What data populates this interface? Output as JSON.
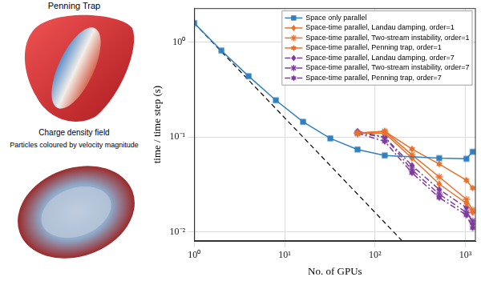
{
  "chart_data": {
    "type": "line",
    "log": true,
    "grid": true,
    "legend": "upper right",
    "x_label": "No. of GPUs",
    "y_label": "time / time step (s)",
    "annotations": [
      "Penning Trap",
      "Charge density field",
      "Particles coloured by velocity magnitude"
    ],
    "xlim": [
      1,
      1300
    ],
    "xticks": [
      {
        "value": 1,
        "label": "10⁰"
      },
      {
        "value": 10,
        "label": "10¹"
      },
      {
        "value": 100,
        "label": "10²"
      },
      {
        "value": 1000,
        "label": "10³"
      }
    ],
    "ylim": [
      0.008,
      2.3
    ],
    "yticks": [
      {
        "value": 0.01,
        "label": "10⁻²"
      },
      {
        "value": 0.1,
        "label": "10⁻¹"
      },
      {
        "value": 1,
        "label": "10⁰"
      }
    ],
    "series": [
      {
        "name": "Space only parallel",
        "color": "#2f7fc1",
        "marker": "square",
        "line_style": "solid",
        "x": [
          1,
          2,
          4,
          8,
          16,
          32,
          64,
          128,
          512,
          1024,
          1200
        ],
        "values": [
          1.6,
          0.82,
          0.44,
          0.245,
          0.145,
          0.097,
          0.074,
          0.064,
          0.06,
          0.059,
          0.07
        ]
      },
      {
        "name": "Space-time parallel, Landau damping, order=1",
        "color": "#e8712b",
        "marker": "diamond",
        "line_style": "solid",
        "x": [
          64,
          128,
          256,
          512,
          1024,
          1200
        ],
        "values": [
          0.11,
          0.11,
          0.06,
          0.032,
          0.02,
          0.016
        ]
      },
      {
        "name": "Space-time parallel, Two-stream instability, order=1",
        "color": "#e8712b",
        "marker": "asterisk",
        "line_style": "solid",
        "x": [
          64,
          128,
          256,
          512,
          1024,
          1200
        ],
        "values": [
          0.11,
          0.115,
          0.065,
          0.038,
          0.022,
          0.017
        ]
      },
      {
        "name": "Space-time parallel, Penning trap, order=1",
        "color": "#e8712b",
        "marker": "hexagram",
        "line_style": "solid",
        "x": [
          64,
          128,
          256,
          512,
          1024,
          1200
        ],
        "values": [
          0.11,
          0.115,
          0.075,
          0.052,
          0.035,
          0.029
        ]
      },
      {
        "name": "Space-time parallel, Landau damping, order=7",
        "color": "#7e3b9e",
        "marker": "diamond",
        "line_style": "dashdot",
        "x": [
          64,
          128,
          256,
          512,
          1024,
          1200
        ],
        "values": [
          0.115,
          0.1,
          0.05,
          0.028,
          0.018,
          0.012
        ]
      },
      {
        "name": "Space-time parallel, Two-stream instability, order=7",
        "color": "#7e3b9e",
        "marker": "asterisk",
        "line_style": "dashdot",
        "x": [
          64,
          128,
          256,
          512,
          1024,
          1200
        ],
        "values": [
          0.11,
          0.1,
          0.045,
          0.025,
          0.016,
          0.013
        ]
      },
      {
        "name": "Space-time parallel, Penning trap, order=7",
        "color": "#7e3b9e",
        "marker": "hexagram",
        "line_style": "dashdot",
        "x": [
          64,
          128,
          256,
          512,
          1024,
          1200
        ],
        "values": [
          0.11,
          0.09,
          0.042,
          0.023,
          0.015,
          0.011
        ]
      }
    ],
    "reference_line": {
      "color": "#000000",
      "line_style": "dashed",
      "x": [
        1,
        1000
      ],
      "values": [
        1.6,
        0.0016
      ]
    }
  }
}
